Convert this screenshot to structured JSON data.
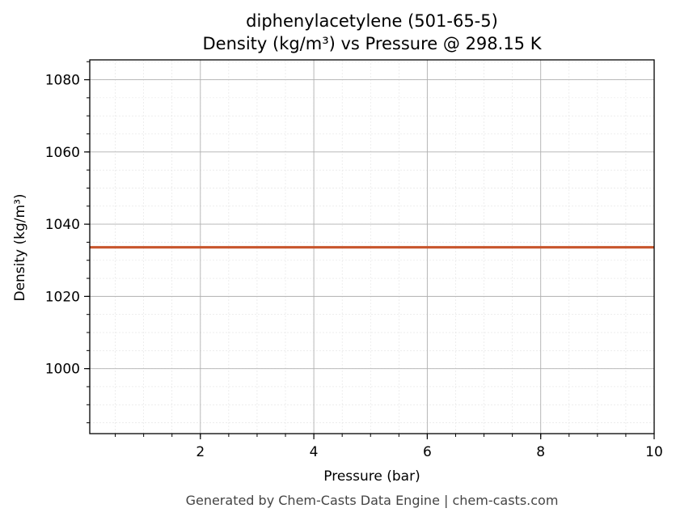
{
  "chart_data": {
    "type": "line",
    "title_line1": "diphenylacetylene (501-65-5)",
    "title_line2": "Density (kg/m³) vs Pressure @ 298.15 K",
    "xlabel": "Pressure (bar)",
    "ylabel": "Density (kg/m³)",
    "xlim": [
      0.05,
      10
    ],
    "ylim": [
      982,
      1085.5
    ],
    "x_ticks": [
      2,
      4,
      6,
      8,
      10
    ],
    "y_ticks": [
      1000,
      1020,
      1040,
      1060,
      1080
    ],
    "grid": true,
    "series": [
      {
        "color": "#c8552b",
        "x": [
          0.05,
          1,
          2,
          3,
          4,
          5,
          6,
          7,
          8,
          9,
          10
        ],
        "y": [
          1033.6,
          1033.6,
          1033.6,
          1033.6,
          1033.6,
          1033.6,
          1033.6,
          1033.6,
          1033.6,
          1033.6,
          1033.6
        ]
      }
    ]
  },
  "footer": "Generated by Chem-Casts Data Engine | chem-casts.com"
}
